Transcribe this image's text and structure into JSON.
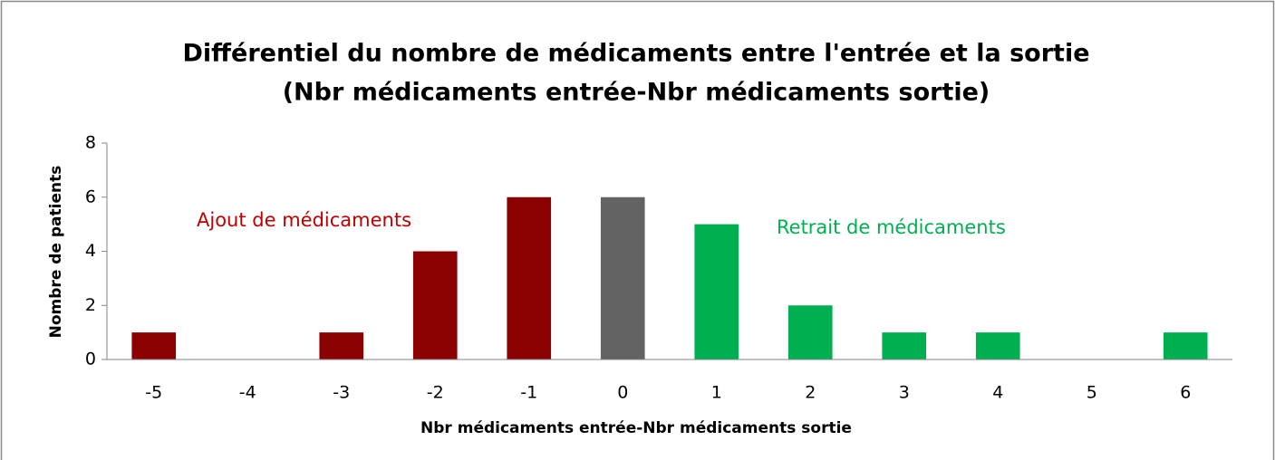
{
  "chart_data": {
    "type": "bar",
    "title": [
      "Différentiel du nombre de médicaments entre l'entrée et la sortie",
      "(Nbr médicaments entrée-Nbr médicaments sortie)"
    ],
    "x_label": "Nbr médicaments entrée-Nbr médicaments sortie",
    "y_label": "Nombre de patients",
    "categories": [
      "-5",
      "-4",
      "-3",
      "-2",
      "-1",
      "0",
      "1",
      "2",
      "3",
      "4",
      "5",
      "6"
    ],
    "values": [
      1,
      0,
      1,
      4,
      6,
      6,
      5,
      2,
      1,
      1,
      0,
      1
    ],
    "colors": [
      "#8b0000",
      "#8b0000",
      "#8b0000",
      "#8b0000",
      "#8b0000",
      "#636363",
      "#00b050",
      "#00b050",
      "#00b050",
      "#00b050",
      "#00b050",
      "#00b050"
    ],
    "annotations": [
      {
        "text": "Ajout de médicaments",
        "color": "#c00000"
      },
      {
        "text": "Retrait de médicaments",
        "color": "#00b050"
      }
    ],
    "ylim": [
      0,
      8
    ],
    "yticks": [
      0,
      2,
      4,
      6,
      8
    ],
    "grid": false
  }
}
